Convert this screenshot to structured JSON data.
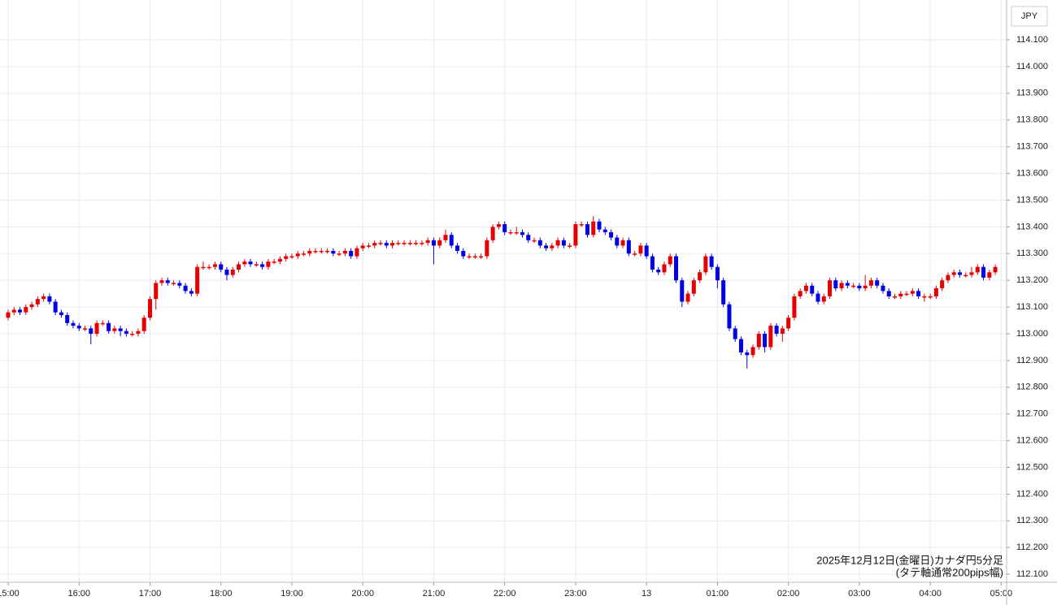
{
  "chart_data": {
    "type": "candlestick",
    "currency": "JPY",
    "annotation": [
      "2025年12月12日(金曜日)カナダ円5分足",
      "(タテ軸通常200pips幅)"
    ],
    "up_color": "#e60000",
    "down_color": "#0000e6",
    "grid": true,
    "ylim": [
      112.07,
      114.249
    ],
    "yticks": [
      {
        "value": 112.1,
        "label": "112.100"
      },
      {
        "value": 112.2,
        "label": "112.200"
      },
      {
        "value": 112.3,
        "label": "112.300"
      },
      {
        "value": 112.4,
        "label": "112.400"
      },
      {
        "value": 112.5,
        "label": "112.500"
      },
      {
        "value": 112.6,
        "label": "112.600"
      },
      {
        "value": 112.7,
        "label": "112.700"
      },
      {
        "value": 112.8,
        "label": "112.800"
      },
      {
        "value": 112.9,
        "label": "112.900"
      },
      {
        "value": 113.0,
        "label": "113.000"
      },
      {
        "value": 113.1,
        "label": "113.100"
      },
      {
        "value": 113.2,
        "label": "113.200"
      },
      {
        "value": 113.3,
        "label": "113.300"
      },
      {
        "value": 113.4,
        "label": "113.400"
      },
      {
        "value": 113.5,
        "label": "113.500"
      },
      {
        "value": 113.6,
        "label": "113.600"
      },
      {
        "value": 113.7,
        "label": "113.700"
      },
      {
        "value": 113.8,
        "label": "113.800"
      },
      {
        "value": 113.9,
        "label": "113.900"
      },
      {
        "value": 114.0,
        "label": "114.000"
      },
      {
        "value": 114.1,
        "label": "114.100"
      }
    ],
    "categories": [
      "15:00",
      null,
      null,
      null,
      null,
      null,
      null,
      null,
      null,
      null,
      null,
      null,
      "16:00",
      null,
      null,
      null,
      null,
      null,
      null,
      null,
      null,
      null,
      null,
      null,
      "17:00",
      null,
      null,
      null,
      null,
      null,
      null,
      null,
      null,
      null,
      null,
      null,
      "18:00",
      null,
      null,
      null,
      null,
      null,
      null,
      null,
      null,
      null,
      null,
      null,
      "19:00",
      null,
      null,
      null,
      null,
      null,
      null,
      null,
      null,
      null,
      null,
      null,
      "20:00",
      null,
      null,
      null,
      null,
      null,
      null,
      null,
      null,
      null,
      null,
      null,
      "21:00",
      null,
      null,
      null,
      null,
      null,
      null,
      null,
      null,
      null,
      null,
      null,
      "22:00",
      null,
      null,
      null,
      null,
      null,
      null,
      null,
      null,
      null,
      null,
      null,
      "23:00",
      null,
      null,
      null,
      null,
      null,
      null,
      null,
      null,
      null,
      null,
      null,
      "13",
      null,
      null,
      null,
      null,
      null,
      null,
      null,
      null,
      null,
      null,
      null,
      "01:00",
      null,
      null,
      null,
      null,
      null,
      null,
      null,
      null,
      null,
      null,
      null,
      "02:00",
      null,
      null,
      null,
      null,
      null,
      null,
      null,
      null,
      null,
      null,
      null,
      "03:00",
      null,
      null,
      null,
      null,
      null,
      null,
      null,
      null,
      null,
      null,
      null,
      "04:00",
      null,
      null,
      null,
      null,
      null,
      null,
      null,
      null,
      null,
      null,
      null,
      "05:00"
    ],
    "open": [
      113.06,
      113.08,
      113.09,
      113.08,
      113.1,
      113.11,
      113.13,
      113.14,
      113.12,
      113.08,
      113.07,
      113.04,
      113.03,
      113.02,
      113.02,
      113.0,
      113.04,
      113.04,
      113.01,
      113.02,
      113.01,
      113.0,
      113.0,
      113.01,
      113.06,
      113.13,
      113.19,
      113.2,
      113.19,
      113.19,
      113.18,
      113.16,
      113.15,
      113.25,
      113.25,
      113.25,
      113.26,
      113.24,
      113.22,
      113.24,
      113.26,
      113.27,
      113.26,
      113.26,
      113.25,
      113.27,
      113.27,
      113.28,
      113.29,
      113.29,
      113.3,
      113.3,
      113.31,
      113.31,
      113.31,
      113.31,
      113.3,
      113.3,
      113.31,
      113.29,
      113.32,
      113.33,
      113.33,
      113.34,
      113.34,
      113.33,
      113.34,
      113.34,
      113.34,
      113.34,
      113.34,
      113.34,
      113.35,
      113.33,
      113.35,
      113.37,
      113.33,
      113.31,
      113.29,
      113.29,
      113.29,
      113.29,
      113.35,
      113.4,
      113.41,
      113.38,
      113.38,
      113.38,
      113.37,
      113.35,
      113.35,
      113.33,
      113.32,
      113.33,
      113.35,
      113.33,
      113.33,
      113.41,
      113.41,
      113.37,
      113.42,
      113.39,
      113.38,
      113.36,
      113.33,
      113.35,
      113.3,
      113.3,
      113.33,
      113.29,
      113.24,
      113.23,
      113.26,
      113.29,
      113.2,
      113.12,
      113.15,
      113.2,
      113.23,
      113.29,
      113.25,
      113.2,
      113.11,
      113.02,
      112.98,
      112.93,
      112.92,
      112.95,
      113.0,
      112.95,
      113.03,
      113.0,
      113.02,
      113.06,
      113.14,
      113.16,
      113.18,
      113.15,
      113.12,
      113.14,
      113.2,
      113.17,
      113.19,
      113.18,
      113.18,
      113.17,
      113.18,
      113.2,
      113.18,
      113.16,
      113.14,
      113.14,
      113.15,
      113.15,
      113.16,
      113.14,
      113.14,
      113.14,
      113.17,
      113.2,
      113.22,
      113.23,
      113.22,
      113.22,
      113.23,
      113.25,
      113.21,
      113.23,
      null
    ],
    "high": [
      113.09,
      113.1,
      113.1,
      113.11,
      113.12,
      113.14,
      113.15,
      113.15,
      113.13,
      113.09,
      113.08,
      113.05,
      113.04,
      113.03,
      113.03,
      113.05,
      113.05,
      113.05,
      113.03,
      113.03,
      113.02,
      113.01,
      113.02,
      113.07,
      113.14,
      113.2,
      113.21,
      113.21,
      113.2,
      113.2,
      113.19,
      113.17,
      113.26,
      113.27,
      113.26,
      113.27,
      113.27,
      113.25,
      113.25,
      113.27,
      113.28,
      113.28,
      113.27,
      113.27,
      113.28,
      113.28,
      113.29,
      113.3,
      113.3,
      113.31,
      113.31,
      113.32,
      113.32,
      113.32,
      113.32,
      113.32,
      113.31,
      113.32,
      113.32,
      113.33,
      113.34,
      113.34,
      113.35,
      113.35,
      113.35,
      113.35,
      113.35,
      113.35,
      113.35,
      113.35,
      113.35,
      113.36,
      113.36,
      113.36,
      113.39,
      113.38,
      113.34,
      113.32,
      113.3,
      113.3,
      113.3,
      113.36,
      113.41,
      113.42,
      113.42,
      113.39,
      113.4,
      113.39,
      113.38,
      113.36,
      113.36,
      113.34,
      113.34,
      113.36,
      113.36,
      113.34,
      113.42,
      113.42,
      113.42,
      113.44,
      113.43,
      113.4,
      113.39,
      113.37,
      113.36,
      113.36,
      113.31,
      113.34,
      113.34,
      113.3,
      113.25,
      113.27,
      113.3,
      113.3,
      113.21,
      113.16,
      113.21,
      113.24,
      113.3,
      113.3,
      113.26,
      113.21,
      113.12,
      113.03,
      112.99,
      112.94,
      112.96,
      113.01,
      113.01,
      113.04,
      113.04,
      113.03,
      113.07,
      113.15,
      113.17,
      113.19,
      113.19,
      113.16,
      113.15,
      113.21,
      113.21,
      113.2,
      113.2,
      113.19,
      113.19,
      113.22,
      113.21,
      113.21,
      113.19,
      113.17,
      113.15,
      113.16,
      113.16,
      113.17,
      113.17,
      113.15,
      113.15,
      113.18,
      113.21,
      113.23,
      113.24,
      113.24,
      113.23,
      113.25,
      113.26,
      113.26,
      113.24,
      113.26,
      null
    ],
    "low": [
      113.05,
      113.07,
      113.07,
      113.07,
      113.09,
      113.1,
      113.12,
      113.11,
      113.07,
      113.06,
      113.03,
      113.02,
      113.01,
      113.01,
      112.96,
      112.99,
      113.03,
      113.0,
      113.0,
      112.99,
      112.99,
      112.99,
      112.99,
      113.0,
      113.05,
      113.09,
      113.18,
      113.18,
      113.18,
      113.17,
      113.15,
      113.14,
      113.14,
      113.24,
      113.24,
      113.24,
      113.23,
      113.2,
      113.21,
      113.23,
      113.25,
      113.25,
      113.25,
      113.24,
      113.24,
      113.26,
      113.26,
      113.27,
      113.28,
      113.28,
      113.29,
      113.29,
      113.3,
      113.3,
      113.3,
      113.29,
      113.29,
      113.29,
      113.28,
      113.28,
      113.31,
      113.32,
      113.32,
      113.33,
      113.32,
      113.32,
      113.33,
      113.33,
      113.33,
      113.33,
      113.33,
      113.33,
      113.26,
      113.32,
      113.34,
      113.32,
      113.3,
      113.28,
      113.28,
      113.28,
      113.28,
      113.28,
      113.34,
      113.39,
      113.37,
      113.37,
      113.37,
      113.36,
      113.34,
      113.34,
      113.32,
      113.31,
      113.31,
      113.32,
      113.32,
      113.32,
      113.32,
      113.4,
      113.36,
      113.36,
      113.38,
      113.37,
      113.35,
      113.32,
      113.32,
      113.29,
      113.29,
      113.29,
      113.28,
      113.23,
      113.22,
      113.22,
      113.25,
      113.19,
      113.1,
      113.11,
      113.14,
      113.19,
      113.22,
      113.24,
      113.17,
      113.1,
      113.01,
      112.97,
      112.92,
      112.87,
      112.91,
      112.94,
      112.93,
      112.94,
      112.99,
      112.97,
      113.01,
      113.05,
      113.13,
      113.15,
      113.14,
      113.11,
      113.11,
      113.13,
      113.16,
      113.16,
      113.17,
      113.17,
      113.16,
      113.16,
      113.17,
      113.17,
      113.15,
      113.13,
      113.13,
      113.13,
      113.14,
      113.14,
      113.13,
      113.12,
      113.13,
      113.13,
      113.16,
      113.19,
      113.21,
      113.21,
      113.21,
      113.21,
      113.22,
      113.2,
      113.2,
      113.22,
      null
    ],
    "close": [
      113.08,
      113.09,
      113.08,
      113.1,
      113.11,
      113.13,
      113.14,
      113.12,
      113.08,
      113.07,
      113.04,
      113.03,
      113.02,
      113.02,
      113.0,
      113.04,
      113.04,
      113.01,
      113.02,
      113.01,
      113.0,
      113.0,
      113.01,
      113.06,
      113.13,
      113.19,
      113.2,
      113.19,
      113.19,
      113.18,
      113.16,
      113.15,
      113.25,
      113.25,
      113.25,
      113.26,
      113.24,
      113.22,
      113.24,
      113.26,
      113.27,
      113.26,
      113.26,
      113.25,
      113.27,
      113.27,
      113.28,
      113.29,
      113.29,
      113.3,
      113.3,
      113.31,
      113.31,
      113.31,
      113.31,
      113.3,
      113.3,
      113.31,
      113.29,
      113.32,
      113.33,
      113.33,
      113.34,
      113.34,
      113.33,
      113.34,
      113.34,
      113.34,
      113.34,
      113.34,
      113.34,
      113.35,
      113.33,
      113.35,
      113.37,
      113.33,
      113.31,
      113.29,
      113.29,
      113.29,
      113.29,
      113.35,
      113.4,
      113.41,
      113.38,
      113.38,
      113.38,
      113.37,
      113.35,
      113.35,
      113.33,
      113.32,
      113.33,
      113.35,
      113.33,
      113.33,
      113.41,
      113.41,
      113.37,
      113.42,
      113.39,
      113.38,
      113.36,
      113.33,
      113.35,
      113.3,
      113.3,
      113.33,
      113.29,
      113.24,
      113.23,
      113.26,
      113.29,
      113.2,
      113.12,
      113.15,
      113.2,
      113.23,
      113.29,
      113.25,
      113.2,
      113.11,
      113.02,
      112.98,
      112.93,
      112.92,
      112.95,
      113.0,
      112.95,
      113.03,
      113.0,
      113.02,
      113.06,
      113.14,
      113.16,
      113.18,
      113.15,
      113.12,
      113.14,
      113.2,
      113.17,
      113.19,
      113.18,
      113.18,
      113.17,
      113.18,
      113.2,
      113.18,
      113.16,
      113.14,
      113.14,
      113.15,
      113.15,
      113.16,
      113.14,
      113.14,
      113.14,
      113.17,
      113.2,
      113.22,
      113.23,
      113.22,
      113.22,
      113.23,
      113.25,
      113.21,
      113.23,
      113.25,
      null
    ]
  }
}
